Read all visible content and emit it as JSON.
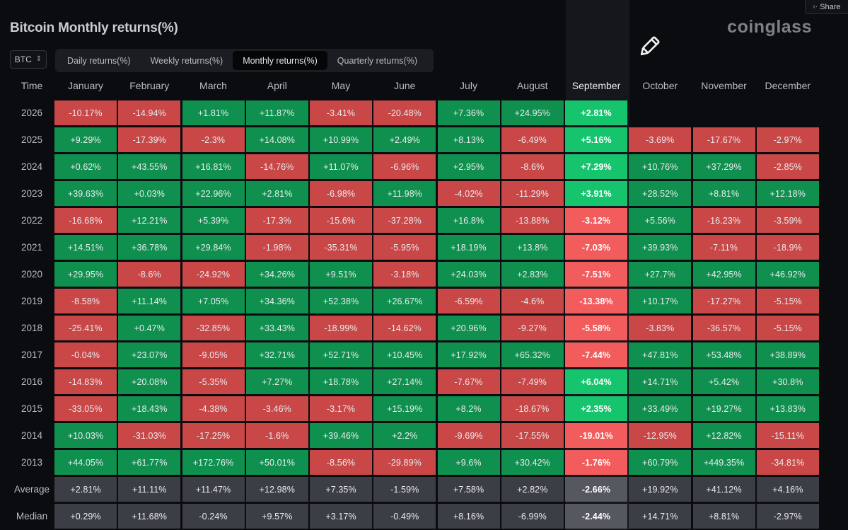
{
  "header": {
    "title": "Bitcoin Monthly returns(%)",
    "brand": "coinglass",
    "share_label": "Share",
    "share_icon": "share-icon"
  },
  "toolbar": {
    "asset_select": {
      "value": "BTC",
      "icon": "chevron-updown-icon"
    },
    "tabs": [
      {
        "label": "Daily returns(%)",
        "active": false
      },
      {
        "label": "Weekly returns(%)",
        "active": false
      },
      {
        "label": "Monthly returns(%)",
        "active": true
      },
      {
        "label": "Quarterly returns(%)",
        "active": false
      }
    ],
    "annotation_icon": "pencil-icon"
  },
  "colors": {
    "positive": "#10904e",
    "negative": "#c94747",
    "positive_highlight": "#17c46e",
    "negative_highlight": "#f25c5c",
    "stat": "#3b3e44",
    "stat_highlight": "#55585e"
  },
  "chart_data": {
    "type": "table",
    "time_label": "Time",
    "highlight_column": "September",
    "columns": [
      "January",
      "February",
      "March",
      "April",
      "May",
      "June",
      "July",
      "August",
      "September",
      "October",
      "November",
      "December"
    ],
    "rows": [
      {
        "year": "2026",
        "values": [
          "-10.17%",
          "-14.94%",
          "+1.81%",
          "+11.87%",
          "-3.41%",
          "-20.48%",
          "+7.36%",
          "+24.95%",
          "+2.81%",
          null,
          null,
          null
        ]
      },
      {
        "year": "2025",
        "values": [
          "+9.29%",
          "-17.39%",
          "-2.3%",
          "+14.08%",
          "+10.99%",
          "+2.49%",
          "+8.13%",
          "-6.49%",
          "+5.16%",
          "-3.69%",
          "-17.67%",
          "-2.97%"
        ]
      },
      {
        "year": "2024",
        "values": [
          "+0.62%",
          "+43.55%",
          "+16.81%",
          "-14.76%",
          "+11.07%",
          "-6.96%",
          "+2.95%",
          "-8.6%",
          "+7.29%",
          "+10.76%",
          "+37.29%",
          "-2.85%"
        ]
      },
      {
        "year": "2023",
        "values": [
          "+39.63%",
          "+0.03%",
          "+22.96%",
          "+2.81%",
          "-6.98%",
          "+11.98%",
          "-4.02%",
          "-11.29%",
          "+3.91%",
          "+28.52%",
          "+8.81%",
          "+12.18%"
        ]
      },
      {
        "year": "2022",
        "values": [
          "-16.68%",
          "+12.21%",
          "+5.39%",
          "-17.3%",
          "-15.6%",
          "-37.28%",
          "+16.8%",
          "-13.88%",
          "-3.12%",
          "+5.56%",
          "-16.23%",
          "-3.59%"
        ]
      },
      {
        "year": "2021",
        "values": [
          "+14.51%",
          "+36.78%",
          "+29.84%",
          "-1.98%",
          "-35.31%",
          "-5.95%",
          "+18.19%",
          "+13.8%",
          "-7.03%",
          "+39.93%",
          "-7.11%",
          "-18.9%"
        ]
      },
      {
        "year": "2020",
        "values": [
          "+29.95%",
          "-8.6%",
          "-24.92%",
          "+34.26%",
          "+9.51%",
          "-3.18%",
          "+24.03%",
          "+2.83%",
          "-7.51%",
          "+27.7%",
          "+42.95%",
          "+46.92%"
        ]
      },
      {
        "year": "2019",
        "values": [
          "-8.58%",
          "+11.14%",
          "+7.05%",
          "+34.36%",
          "+52.38%",
          "+26.67%",
          "-6.59%",
          "-4.6%",
          "-13.38%",
          "+10.17%",
          "-17.27%",
          "-5.15%"
        ]
      },
      {
        "year": "2018",
        "values": [
          "-25.41%",
          "+0.47%",
          "-32.85%",
          "+33.43%",
          "-18.99%",
          "-14.62%",
          "+20.96%",
          "-9.27%",
          "-5.58%",
          "-3.83%",
          "-36.57%",
          "-5.15%"
        ]
      },
      {
        "year": "2017",
        "values": [
          "-0.04%",
          "+23.07%",
          "-9.05%",
          "+32.71%",
          "+52.71%",
          "+10.45%",
          "+17.92%",
          "+65.32%",
          "-7.44%",
          "+47.81%",
          "+53.48%",
          "+38.89%"
        ]
      },
      {
        "year": "2016",
        "values": [
          "-14.83%",
          "+20.08%",
          "-5.35%",
          "+7.27%",
          "+18.78%",
          "+27.14%",
          "-7.67%",
          "-7.49%",
          "+6.04%",
          "+14.71%",
          "+5.42%",
          "+30.8%"
        ]
      },
      {
        "year": "2015",
        "values": [
          "-33.05%",
          "+18.43%",
          "-4.38%",
          "-3.46%",
          "-3.17%",
          "+15.19%",
          "+8.2%",
          "-18.67%",
          "+2.35%",
          "+33.49%",
          "+19.27%",
          "+13.83%"
        ]
      },
      {
        "year": "2014",
        "values": [
          "+10.03%",
          "-31.03%",
          "-17.25%",
          "-1.6%",
          "+39.46%",
          "+2.2%",
          "-9.69%",
          "-17.55%",
          "-19.01%",
          "-12.95%",
          "+12.82%",
          "-15.11%"
        ]
      },
      {
        "year": "2013",
        "values": [
          "+44.05%",
          "+61.77%",
          "+172.76%",
          "+50.01%",
          "-8.56%",
          "-29.89%",
          "+9.6%",
          "+30.42%",
          "-1.76%",
          "+60.79%",
          "+449.35%",
          "-34.81%"
        ]
      }
    ],
    "stats": [
      {
        "label": "Average",
        "values": [
          "+2.81%",
          "+11.11%",
          "+11.47%",
          "+12.98%",
          "+7.35%",
          "-1.59%",
          "+7.58%",
          "+2.82%",
          "-2.66%",
          "+19.92%",
          "+41.12%",
          "+4.16%"
        ]
      },
      {
        "label": "Median",
        "values": [
          "+0.29%",
          "+11.68%",
          "-0.24%",
          "+9.57%",
          "+3.17%",
          "-0.49%",
          "+8.16%",
          "-6.99%",
          "-2.44%",
          "+14.71%",
          "+8.81%",
          "-2.97%"
        ]
      }
    ]
  }
}
